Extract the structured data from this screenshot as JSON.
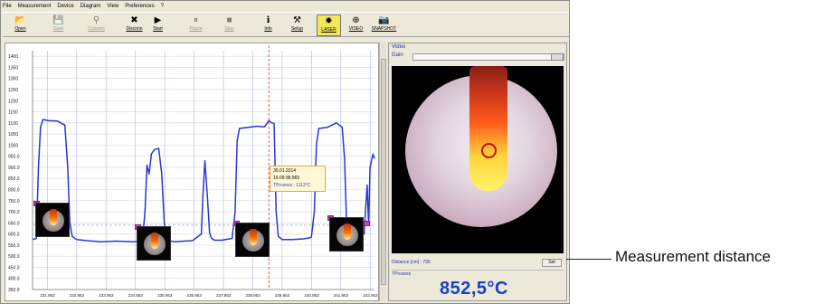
{
  "menu": [
    "File",
    "Measurement",
    "Device",
    "Diagram",
    "View",
    "Preferences",
    "?"
  ],
  "toolbar": [
    {
      "label": "Open",
      "icon": "folder-icon",
      "glyph": "📂",
      "disabled": false,
      "active": false
    },
    {
      "label": "Save",
      "icon": "save-icon",
      "glyph": "💾",
      "disabled": true,
      "active": false
    },
    {
      "label": "Connect",
      "icon": "connect-icon",
      "glyph": "⚲",
      "disabled": true,
      "active": false
    },
    {
      "label": "Disconn",
      "icon": "disconnect-icon",
      "glyph": "✖",
      "disabled": false,
      "active": false
    },
    {
      "label": "Start",
      "icon": "play-icon",
      "glyph": "▶",
      "disabled": false,
      "active": false
    },
    {
      "label": "Pause",
      "icon": "pause-icon",
      "glyph": "⏸",
      "disabled": true,
      "active": false
    },
    {
      "label": "Stop",
      "icon": "stop-icon",
      "glyph": "■",
      "disabled": true,
      "active": false
    },
    {
      "label": "Info",
      "icon": "info-icon",
      "glyph": "ℹ",
      "disabled": false,
      "active": false
    },
    {
      "label": "Setup",
      "icon": "setup-icon",
      "glyph": "⚒",
      "disabled": false,
      "active": false
    },
    {
      "label": "LASER",
      "icon": "laser-icon",
      "glyph": "✹",
      "disabled": false,
      "active": true
    },
    {
      "label": "VIDEO",
      "icon": "video-icon",
      "glyph": "⊕",
      "disabled": false,
      "active": false
    },
    {
      "label": "SNAPSHOT",
      "icon": "snapshot-icon",
      "glyph": "📷",
      "disabled": false,
      "active": false
    }
  ],
  "chart_data": {
    "type": "line",
    "y_ticks": [
      "1400",
      "1350",
      "1300",
      "1250",
      "1200",
      "1150",
      "1100",
      "1050",
      "1000",
      "950.0",
      "900.0",
      "850.0",
      "800.0",
      "750.0",
      "700.0",
      "650.0",
      "600.0",
      "550.0",
      "500.0",
      "450.0",
      "400.0",
      "350.0"
    ],
    "ylim": [
      350,
      1425
    ],
    "x_ticks": [
      "231.953",
      "232.953",
      "233.953",
      "234.953",
      "235.953",
      "236.953",
      "237.953",
      "238.953",
      "239.953",
      "240.953",
      "241.953",
      "242.953"
    ],
    "xlim": [
      231.45,
      243.1
    ],
    "series": [
      {
        "color": "#2a36d6",
        "x": [
          231.45,
          231.58,
          231.65,
          231.72,
          231.8,
          232.0,
          232.3,
          232.55,
          232.65,
          232.72,
          232.8,
          232.95,
          233.3,
          233.8,
          234.3,
          234.9,
          235.1,
          235.2,
          235.28,
          235.35,
          235.42,
          235.5,
          235.6,
          235.75,
          235.85,
          235.95,
          236.05,
          236.15,
          236.3,
          236.6,
          236.9,
          237.2,
          237.25,
          237.32,
          237.4,
          237.48,
          237.55,
          237.65,
          237.9,
          238.25,
          238.35,
          238.42,
          238.5,
          238.8,
          239.1,
          239.35,
          239.5,
          239.6,
          239.68,
          239.75,
          239.82,
          239.95,
          240.3,
          240.7,
          240.95,
          241.05,
          241.12,
          241.2,
          241.5,
          241.8,
          242.0,
          242.08,
          242.15,
          242.25,
          242.6,
          242.75,
          242.8,
          242.85,
          242.9,
          242.95,
          243.05,
          243.1
        ],
        "y": [
          575,
          580,
          900,
          1080,
          1115,
          1110,
          1108,
          1090,
          900,
          650,
          590,
          575,
          570,
          565,
          568,
          565,
          568,
          580,
          700,
          910,
          870,
          960,
          980,
          985,
          870,
          620,
          572,
          568,
          565,
          568,
          570,
          600,
          760,
          930,
          780,
          605,
          580,
          572,
          572,
          580,
          700,
          1020,
          1075,
          1080,
          1085,
          1082,
          1110,
          1100,
          1098,
          700,
          590,
          575,
          575,
          578,
          585,
          700,
          1000,
          1075,
          1080,
          1100,
          1080,
          940,
          640,
          590,
          592,
          600,
          720,
          820,
          640,
          900,
          960,
          940
        ]
      }
    ],
    "cursor_x": 239.5
  },
  "tooltip": {
    "date": "30.01.2014",
    "time": "16:09:38.865",
    "value": "TProzess : 1113°C"
  },
  "video": {
    "title": "Video",
    "gain_label": "Gain",
    "distance_label": "Distance [cm] : 795",
    "set_label": "Set",
    "tprocess_label": "TProzess",
    "temperature": "852,5°C"
  },
  "callout": "Measurement distance"
}
